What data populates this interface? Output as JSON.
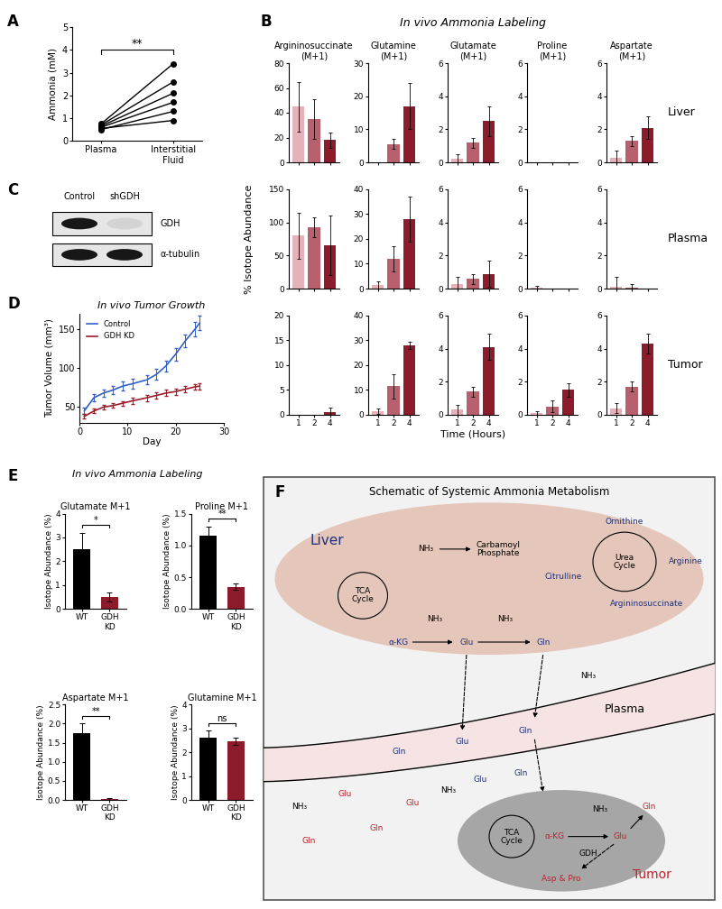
{
  "chart_data": [
    {
      "panel": "A",
      "type": "line",
      "ylabel": "Ammonia (mM)",
      "categories": [
        "Plasma",
        "Interstitial\nFluid"
      ],
      "ylim": [
        0,
        5
      ],
      "yticks": [
        0,
        1,
        2,
        3,
        4,
        5
      ],
      "color": "#000000",
      "marker": "circle",
      "annotation": "**",
      "series": [
        {
          "values": [
            0.75,
            3.4
          ]
        },
        {
          "values": [
            0.7,
            2.6
          ]
        },
        {
          "values": [
            0.65,
            2.1
          ]
        },
        {
          "values": [
            0.6,
            1.7
          ]
        },
        {
          "values": [
            0.5,
            1.3
          ]
        },
        {
          "values": [
            0.55,
            0.9
          ]
        }
      ]
    },
    {
      "panel": "B",
      "type": "bar",
      "title": "In vivo Ammonia Labeling",
      "ylabel": "% Isotope Abundance",
      "xlabel": "Time (Hours)",
      "categories": [
        "1",
        "2",
        "4"
      ],
      "colors": [
        "#e3b3b9",
        "#b8606e",
        "#8c1c2c"
      ],
      "columns": [
        "Argininosuccinate\n(M+1)",
        "Glutamine\n(M+1)",
        "Glutamate\n(M+1)",
        "Proline\n(M+1)",
        "Aspartate\n(M+1)"
      ],
      "rows": [
        {
          "name": "Liver",
          "charts": [
            {
              "ylim": [
                0,
                80
              ],
              "yticks": [
                0,
                20,
                40,
                60,
                80
              ],
              "values": [
                45,
                35,
                18
              ],
              "errors": [
                20,
                16,
                6
              ]
            },
            {
              "ylim": [
                0,
                30
              ],
              "yticks": [
                0,
                10,
                20,
                30
              ],
              "values": [
                0,
                5.5,
                17
              ],
              "errors": [
                0,
                1.5,
                7
              ]
            },
            {
              "ylim": [
                0,
                6
              ],
              "yticks": [
                0,
                2,
                4,
                6
              ],
              "values": [
                0.2,
                1.2,
                2.5
              ],
              "errors": [
                0.3,
                0.3,
                0.9
              ]
            },
            {
              "ylim": [
                0,
                6
              ],
              "yticks": [
                0,
                2,
                4,
                6
              ],
              "values": [
                0,
                0,
                0
              ],
              "errors": [
                0,
                0,
                0
              ]
            },
            {
              "ylim": [
                0,
                6
              ],
              "yticks": [
                0,
                2,
                4,
                6
              ],
              "values": [
                0.3,
                1.3,
                2.1
              ],
              "errors": [
                0.4,
                0.3,
                0.7
              ]
            }
          ]
        },
        {
          "name": "Plasma",
          "charts": [
            {
              "ylim": [
                0,
                150
              ],
              "yticks": [
                0,
                50,
                100,
                150
              ],
              "values": [
                80,
                93,
                65
              ],
              "errors": [
                35,
                15,
                45
              ]
            },
            {
              "ylim": [
                0,
                40
              ],
              "yticks": [
                0,
                10,
                20,
                30,
                40
              ],
              "values": [
                1.5,
                12,
                28
              ],
              "errors": [
                1.5,
                5,
                9
              ]
            },
            {
              "ylim": [
                0,
                6
              ],
              "yticks": [
                0,
                2,
                4,
                6
              ],
              "values": [
                0.3,
                0.6,
                0.9
              ],
              "errors": [
                0.4,
                0.3,
                0.8
              ]
            },
            {
              "ylim": [
                0,
                6
              ],
              "yticks": [
                0,
                2,
                4,
                6
              ],
              "values": [
                0.05,
                0,
                0
              ],
              "errors": [
                0.1,
                0,
                0
              ]
            },
            {
              "ylim": [
                0,
                6
              ],
              "yticks": [
                0,
                2,
                4,
                6
              ],
              "values": [
                0.1,
                0.05,
                0
              ],
              "errors": [
                0.6,
                0.2,
                0
              ]
            }
          ]
        },
        {
          "name": "Tumor",
          "charts": [
            {
              "ylim": [
                0,
                20
              ],
              "yticks": [
                0,
                5,
                10,
                15,
                20
              ],
              "values": [
                0,
                0,
                0.5
              ],
              "errors": [
                0,
                0,
                1
              ]
            },
            {
              "ylim": [
                0,
                40
              ],
              "yticks": [
                0,
                10,
                20,
                30,
                40
              ],
              "values": [
                1.5,
                11.5,
                28
              ],
              "errors": [
                1,
                5,
                1.5
              ]
            },
            {
              "ylim": [
                0,
                6
              ],
              "yticks": [
                0,
                2,
                4,
                6
              ],
              "values": [
                0.3,
                1.4,
                4.1
              ],
              "errors": [
                0.3,
                0.3,
                0.8
              ]
            },
            {
              "ylim": [
                0,
                6
              ],
              "yticks": [
                0,
                2,
                4,
                6
              ],
              "values": [
                0.1,
                0.5,
                1.5
              ],
              "errors": [
                0.1,
                0.35,
                0.4
              ]
            },
            {
              "ylim": [
                0,
                6
              ],
              "yticks": [
                0,
                2,
                4,
                6
              ],
              "values": [
                0.4,
                1.7,
                4.3
              ],
              "errors": [
                0.3,
                0.3,
                0.6
              ]
            }
          ]
        }
      ]
    },
    {
      "panel": "D",
      "type": "line",
      "title": "In vivo Tumor Growth",
      "xlabel": "Day",
      "ylabel": "Tumor Volume (mm³)",
      "x": [
        1,
        3,
        5,
        7,
        9,
        11,
        14,
        16,
        18,
        20,
        22,
        24,
        25
      ],
      "xlim": [
        0,
        30
      ],
      "xticks": [
        0,
        10,
        20,
        30
      ],
      "ylim": [
        30,
        170
      ],
      "yticks": [
        50,
        100,
        150
      ],
      "legend": "upper left",
      "series": [
        {
          "name": "Control",
          "color": "#3060c8",
          "values": [
            45,
            62,
            68,
            72,
            77,
            80,
            85,
            92,
            103,
            118,
            135,
            150,
            158
          ],
          "errors": [
            4,
            5,
            5,
            5,
            6,
            6,
            6,
            7,
            7,
            8,
            8,
            9,
            9
          ]
        },
        {
          "name": "GDH KD",
          "color": "#9b1b2a",
          "values": [
            38,
            45,
            50,
            52,
            55,
            58,
            62,
            65,
            68,
            70,
            73,
            76,
            77
          ],
          "errors": [
            3,
            3,
            3,
            3,
            3,
            4,
            4,
            4,
            4,
            4,
            4,
            4,
            4
          ]
        }
      ]
    },
    {
      "panel": "E",
      "type": "bar",
      "title": "In vivo Ammonia Labeling",
      "ylabel": "Isotope Abundance (%)",
      "categories": [
        "WT",
        "GDH\nKD"
      ],
      "colors": [
        "#000000",
        "#8c1c2c"
      ],
      "charts": [
        {
          "title": "Glutamate M+1",
          "ylim": [
            0,
            4
          ],
          "yticks": [
            0,
            1,
            2,
            3,
            4
          ],
          "values": [
            2.5,
            0.5
          ],
          "errors": [
            0.7,
            0.2
          ],
          "annotation": "*"
        },
        {
          "title": "Proline M+1",
          "ylim": [
            0,
            1.5
          ],
          "yticks": [
            {
              "value": 0,
              "label": "0.0"
            },
            0.5,
            {
              "value": 1,
              "label": "1.0"
            },
            1.5
          ],
          "values": [
            1.15,
            0.35
          ],
          "errors": [
            0.15,
            0.05
          ],
          "annotation": "**"
        },
        {
          "title": "Aspartate M+1",
          "ylim": [
            0,
            2.5
          ],
          "yticks": [
            {
              "value": 0,
              "label": "0.0"
            },
            0.5,
            {
              "value": 1,
              "label": "1.0"
            },
            1.5,
            {
              "value": 2,
              "label": "2.0"
            },
            2.5
          ],
          "values": [
            1.75,
            0.03
          ],
          "errors": [
            0.25,
            0.02
          ],
          "annotation": "**"
        },
        {
          "title": "Glutamine M+1",
          "ylim": [
            0,
            4
          ],
          "yticks": [
            0,
            1,
            2,
            3,
            4
          ],
          "values": [
            2.6,
            2.45
          ],
          "errors": [
            0.3,
            0.15
          ],
          "annotation": "ns"
        }
      ]
    }
  ],
  "blot": {
    "panel": "C",
    "lanes": [
      "Control",
      "shGDH"
    ],
    "rows": [
      "GDH",
      "α-tubulin"
    ]
  },
  "schematic": {
    "panel": "F",
    "title": "Schematic of Systemic Ammonia Metabolism",
    "regions": [
      {
        "text": "Liver",
        "color": "#1f2f7a"
      },
      {
        "text": "Plasma",
        "color": "#000000"
      },
      {
        "text": "Tumor",
        "color": "#c0202a"
      }
    ],
    "labels": [
      {
        "text": "NH₃",
        "color": "#000000"
      },
      {
        "text": "Carbamoyl\nPhosphate",
        "color": "#000000"
      },
      {
        "text": "Urea\nCycle",
        "color": "#000000"
      },
      {
        "text": "Ornithine",
        "color": "#1f2f7a"
      },
      {
        "text": "Arginine",
        "color": "#1f2f7a"
      },
      {
        "text": "Argininosuccinate",
        "color": "#1f2f7a"
      },
      {
        "text": "Citrulline",
        "color": "#1f2f7a"
      },
      {
        "text": "TCA\nCycle",
        "color": "#000000"
      },
      {
        "text": "α-KG",
        "color": "#1f2f7a"
      },
      {
        "text": "NH₃",
        "color": "#000000"
      },
      {
        "text": "Glu",
        "color": "#1f2f7a"
      },
      {
        "text": "NH₃",
        "color": "#000000"
      },
      {
        "text": "Gln",
        "color": "#1f2f7a"
      },
      {
        "text": "NH₃",
        "color": "#000000"
      },
      {
        "text": "Gln",
        "color": "#1f2f7a"
      },
      {
        "text": "Glu",
        "color": "#1f2f7a"
      },
      {
        "text": "Gln",
        "color": "#1f2f7a"
      },
      {
        "text": "NH₃",
        "color": "#000000"
      },
      {
        "text": "Glu",
        "color": "#c0202a"
      },
      {
        "text": "Gln",
        "color": "#c0202a"
      },
      {
        "text": "Gln",
        "color": "#c0202a"
      },
      {
        "text": "Glu",
        "color": "#c0202a"
      },
      {
        "text": "NH₃",
        "color": "#000000"
      },
      {
        "text": "Glu",
        "color": "#1f2f7a"
      },
      {
        "text": "Gln",
        "color": "#1f2f7a"
      },
      {
        "text": "TCA\nCycle",
        "color": "#000000"
      },
      {
        "text": "α-KG",
        "color": "#c0202a"
      },
      {
        "text": "GDH",
        "color": "#000000"
      },
      {
        "text": "Glu",
        "color": "#c0202a"
      },
      {
        "text": "NH₃",
        "color": "#000000"
      },
      {
        "text": "Gln",
        "color": "#c0202a"
      },
      {
        "text": "Asp & Pro",
        "color": "#c0202a"
      }
    ]
  }
}
